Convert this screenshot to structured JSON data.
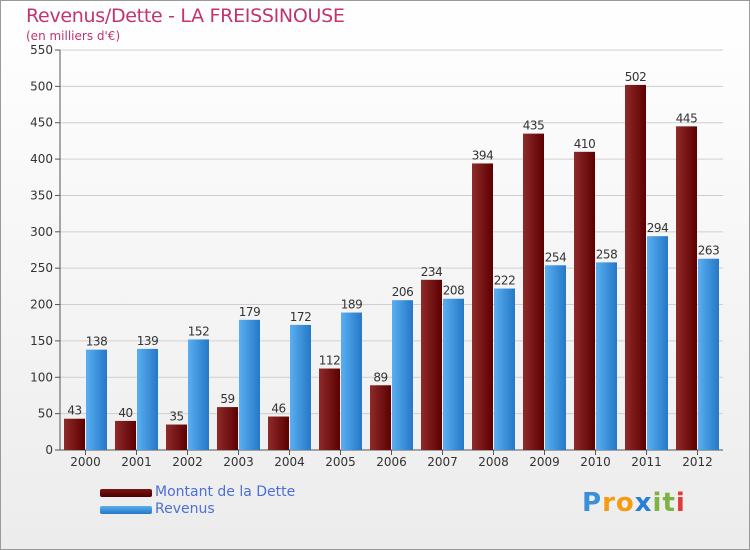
{
  "chart_data": {
    "type": "bar",
    "title": "Revenus/Dette - LA FREISSINOUSE",
    "subtitle": "(en milliers d'€)",
    "categories": [
      "2000",
      "2001",
      "2002",
      "2003",
      "2004",
      "2005",
      "2006",
      "2007",
      "2008",
      "2009",
      "2010",
      "2011",
      "2012"
    ],
    "series": [
      {
        "name": "Montant de la Dette",
        "color": "#7a1414",
        "values": [
          43,
          40,
          35,
          59,
          46,
          112,
          89,
          234,
          394,
          435,
          410,
          502,
          445
        ]
      },
      {
        "name": "Revenus",
        "color": "#3e97df",
        "values": [
          138,
          139,
          152,
          179,
          172,
          189,
          206,
          208,
          222,
          254,
          258,
          294,
          263
        ]
      }
    ],
    "yticks": [
      0,
      50,
      100,
      150,
      200,
      250,
      300,
      350,
      400,
      450,
      500,
      550
    ],
    "ylim": [
      0,
      550
    ],
    "grid": true,
    "legend": "bottom-left",
    "data_labels": true
  },
  "logo": {
    "letters": [
      "P",
      "r",
      "o",
      "x",
      "i",
      "t",
      "i"
    ],
    "colors": [
      "#3a8fd8",
      "#f39c12",
      "#f39c12",
      "#2a7fd0",
      "#7cb342",
      "#7cb342",
      "#e53935"
    ]
  }
}
